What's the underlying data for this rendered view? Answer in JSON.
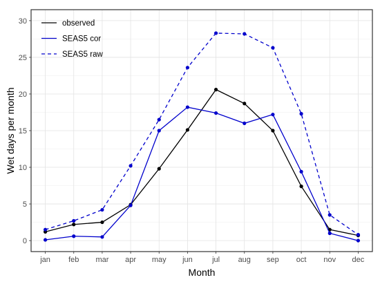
{
  "chart_data": {
    "type": "line",
    "categories": [
      "jan",
      "feb",
      "mar",
      "apr",
      "may",
      "jun",
      "jul",
      "aug",
      "sep",
      "oct",
      "nov",
      "dec"
    ],
    "xlabel": "Month",
    "ylabel": "Wet days per month",
    "ylim": [
      -1.5,
      31.5
    ],
    "yticks": [
      0,
      5,
      10,
      15,
      20,
      25,
      30
    ],
    "grid": true,
    "legend_position": "top-left",
    "series": [
      {
        "name": "observed",
        "color": "#000000",
        "dash": "solid",
        "values": [
          1.2,
          2.2,
          2.5,
          4.9,
          9.8,
          15.1,
          20.6,
          18.7,
          15.0,
          7.4,
          1.5,
          0.7
        ]
      },
      {
        "name": "SEAS5 cor",
        "color": "#0000cc",
        "dash": "solid",
        "values": [
          0.1,
          0.6,
          0.5,
          4.8,
          15.0,
          18.2,
          17.4,
          16.0,
          17.2,
          9.4,
          1.0,
          0.0
        ]
      },
      {
        "name": "SEAS5 raw",
        "color": "#0000cc",
        "dash": "dashed",
        "values": [
          1.5,
          2.7,
          4.2,
          10.2,
          16.5,
          23.6,
          28.3,
          28.2,
          26.3,
          17.3,
          3.5,
          0.8
        ]
      }
    ]
  }
}
